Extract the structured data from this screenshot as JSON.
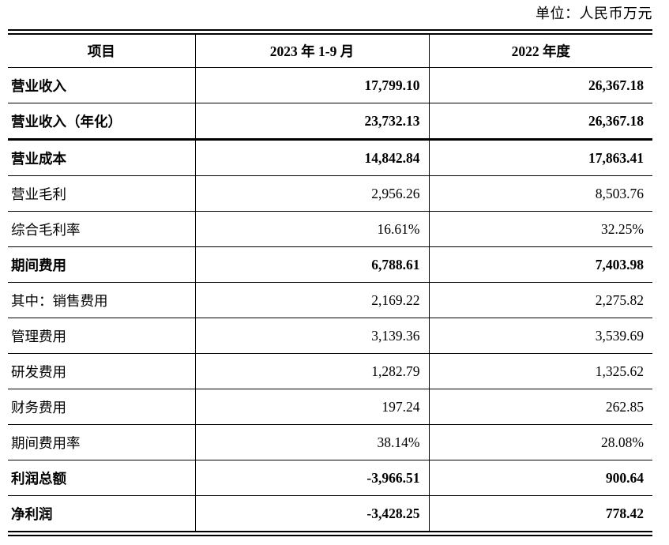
{
  "page": {
    "unit_label": "单位：人民币万元"
  },
  "table": {
    "headers": [
      "项目",
      "2023 年 1-9 月",
      "2022 年度"
    ],
    "rows": [
      {
        "label": "营业收入",
        "v2023": "17,799.10",
        "v2022": "26,367.18",
        "bold": true,
        "thick_bottom": false
      },
      {
        "label": "营业收入（年化）",
        "v2023": "23,732.13",
        "v2022": "26,367.18",
        "bold": true,
        "thick_bottom": true
      },
      {
        "label": "营业成本",
        "v2023": "14,842.84",
        "v2022": "17,863.41",
        "bold": true,
        "thick_bottom": false
      },
      {
        "label": "营业毛利",
        "v2023": "2,956.26",
        "v2022": "8,503.76",
        "bold": false,
        "thick_bottom": false
      },
      {
        "label": "综合毛利率",
        "v2023": "16.61%",
        "v2022": "32.25%",
        "bold": false,
        "thick_bottom": false
      },
      {
        "label": "期间费用",
        "v2023": "6,788.61",
        "v2022": "7,403.98",
        "bold": true,
        "thick_bottom": false
      },
      {
        "label": "其中：销售费用",
        "v2023": "2,169.22",
        "v2022": "2,275.82",
        "bold": false,
        "thick_bottom": false
      },
      {
        "label": "管理费用",
        "v2023": "3,139.36",
        "v2022": "3,539.69",
        "bold": false,
        "thick_bottom": false
      },
      {
        "label": "研发费用",
        "v2023": "1,282.79",
        "v2022": "1,325.62",
        "bold": false,
        "thick_bottom": false
      },
      {
        "label": "财务费用",
        "v2023": "197.24",
        "v2022": "262.85",
        "bold": false,
        "thick_bottom": false
      },
      {
        "label": "期间费用率",
        "v2023": "38.14%",
        "v2022": "28.08%",
        "bold": false,
        "thick_bottom": false
      },
      {
        "label": "利润总额",
        "v2023": "-3,966.51",
        "v2022": "900.64",
        "bold": true,
        "thick_bottom": false
      },
      {
        "label": "净利润",
        "v2023": "-3,428.25",
        "v2022": "778.42",
        "bold": true,
        "thick_bottom": false
      }
    ]
  }
}
